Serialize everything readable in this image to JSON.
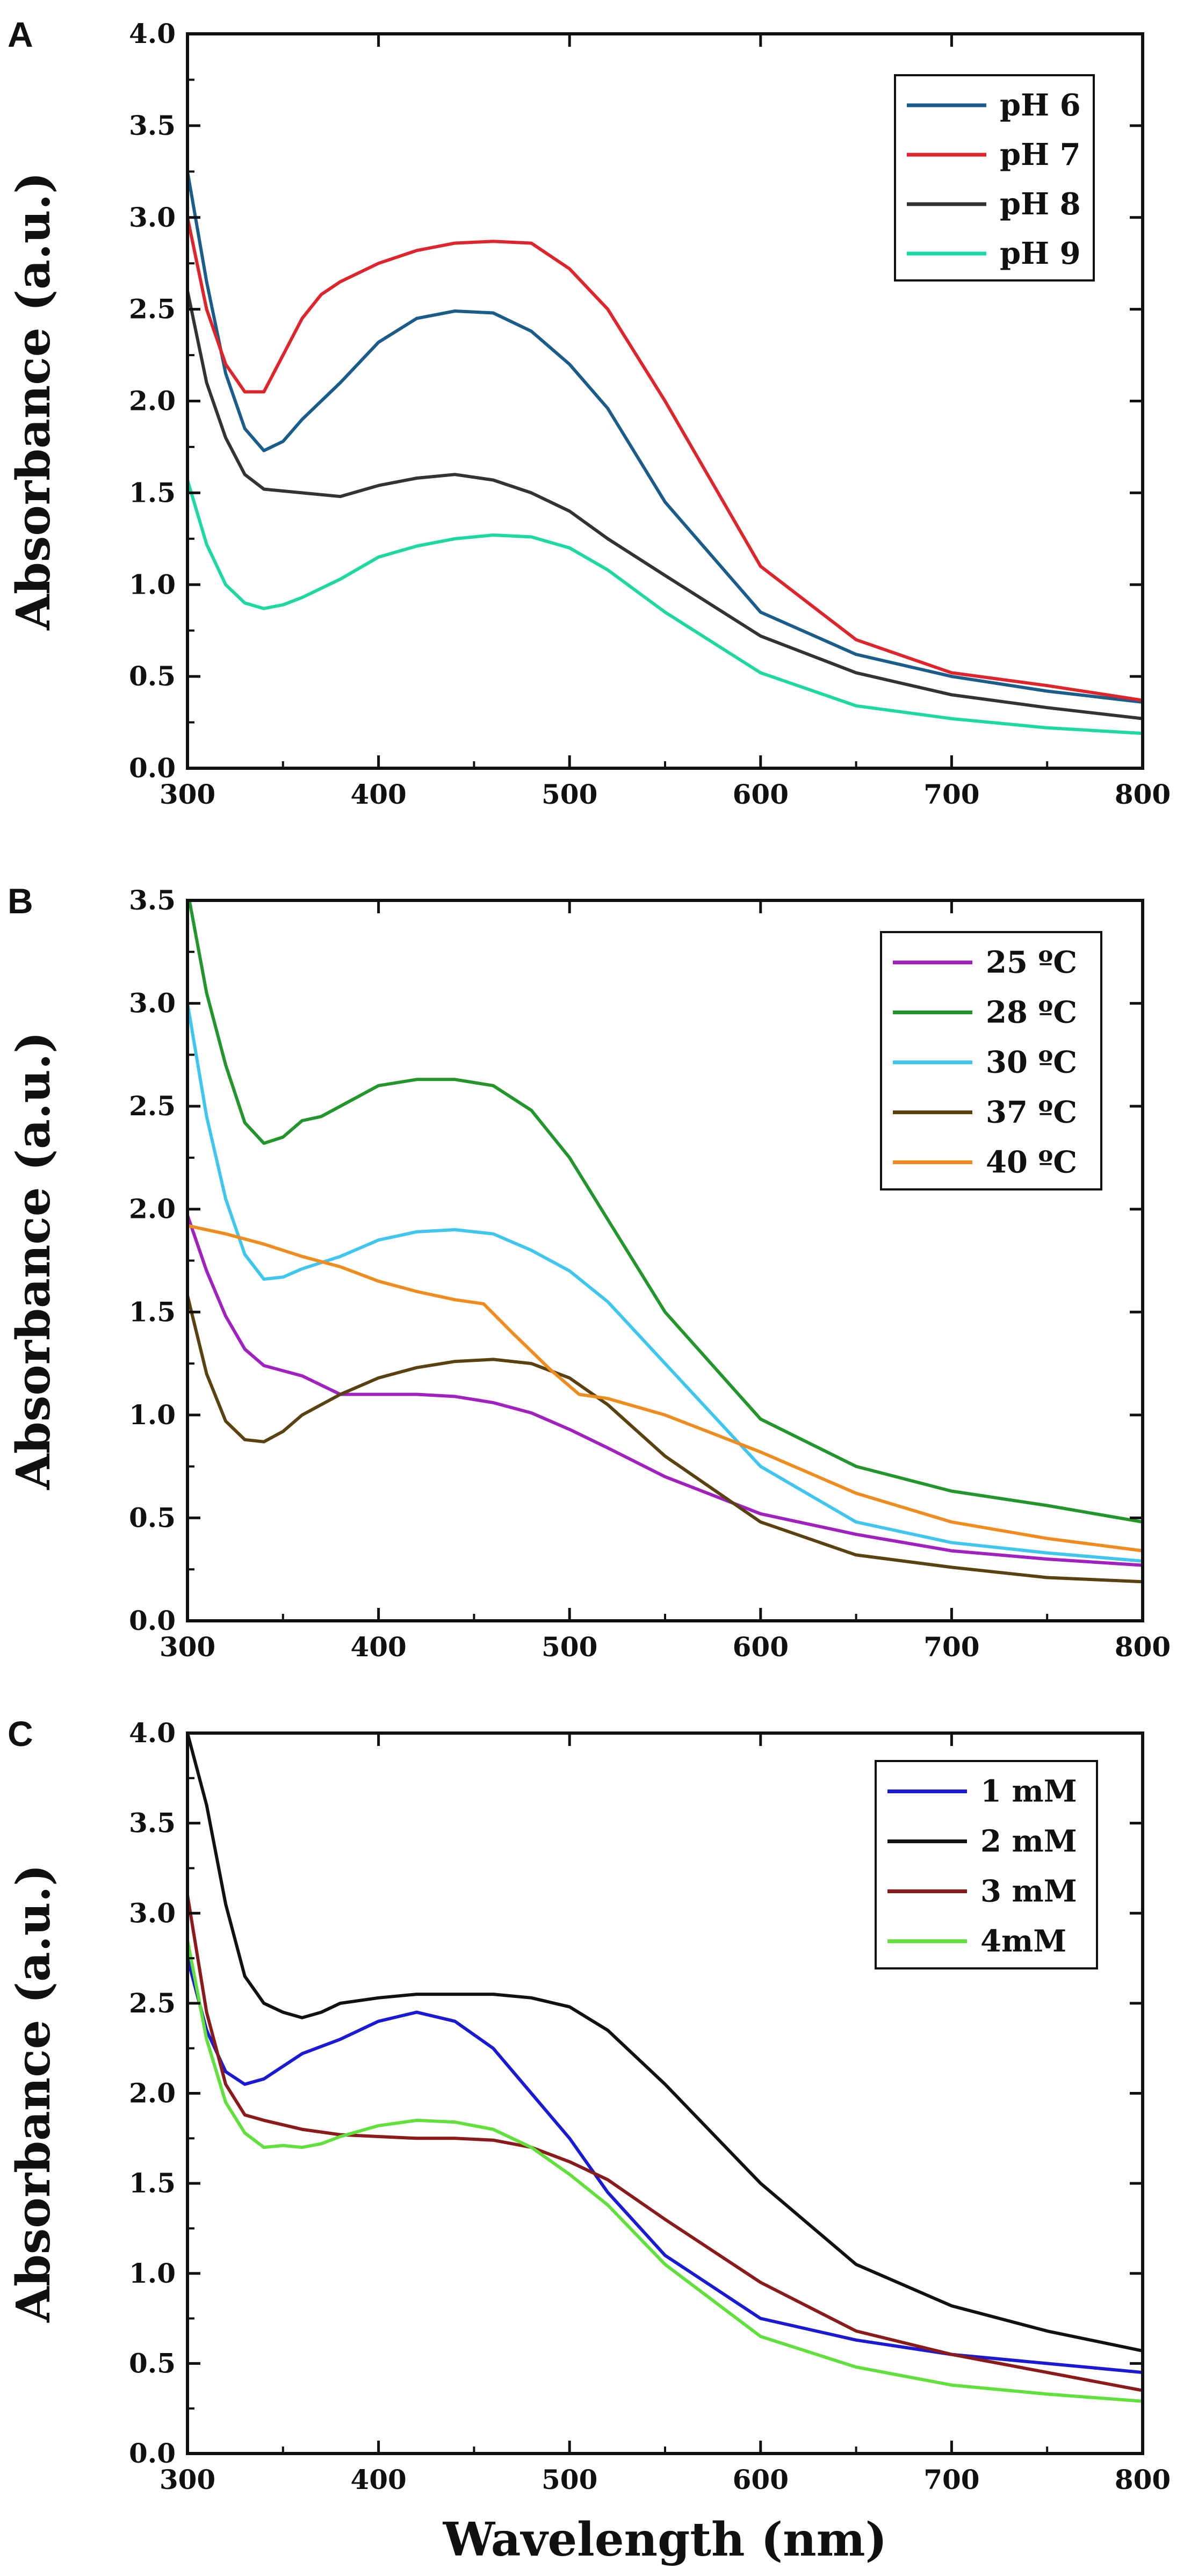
{
  "chart_data": [
    {
      "panel": "A",
      "type": "line",
      "ylabel": "Absorbance (a.u.)",
      "xlabel": "",
      "xlim": [
        300,
        800
      ],
      "ylim": [
        0.0,
        4.0
      ],
      "xticks": [
        300,
        400,
        500,
        600,
        700,
        800
      ],
      "xtick_labels": [
        "300",
        "400",
        "500",
        "600",
        "700",
        "800"
      ],
      "yticks": [
        0.0,
        0.5,
        1.0,
        1.5,
        2.0,
        2.5,
        3.0,
        3.5,
        4.0
      ],
      "ytick_labels": [
        "0.0",
        "0.5",
        "1.0",
        "1.5",
        "2.0",
        "2.5",
        "3.0",
        "3.5",
        "4.0"
      ],
      "legend_position": "top-right",
      "series": [
        {
          "name": "pH 6",
          "color": "#1a5c8a",
          "x": [
            300,
            310,
            320,
            330,
            340,
            350,
            360,
            380,
            400,
            420,
            440,
            460,
            480,
            500,
            520,
            550,
            600,
            650,
            700,
            750,
            800
          ],
          "y": [
            3.25,
            2.65,
            2.15,
            1.85,
            1.73,
            1.78,
            1.9,
            2.1,
            2.32,
            2.45,
            2.49,
            2.48,
            2.38,
            2.2,
            1.96,
            1.45,
            0.85,
            0.62,
            0.5,
            0.42,
            0.36
          ]
        },
        {
          "name": "pH 7",
          "color": "#e0242b",
          "x": [
            300,
            310,
            320,
            330,
            340,
            350,
            360,
            370,
            380,
            400,
            420,
            440,
            460,
            480,
            500,
            520,
            550,
            600,
            650,
            700,
            750,
            800
          ],
          "y": [
            3.0,
            2.5,
            2.2,
            2.05,
            2.05,
            2.25,
            2.45,
            2.58,
            2.65,
            2.75,
            2.82,
            2.86,
            2.87,
            2.86,
            2.72,
            2.5,
            2.0,
            1.1,
            0.7,
            0.52,
            0.45,
            0.37
          ]
        },
        {
          "name": "pH 8",
          "color": "#333333",
          "x": [
            300,
            310,
            320,
            330,
            340,
            360,
            380,
            400,
            420,
            440,
            460,
            480,
            500,
            520,
            550,
            600,
            650,
            700,
            750,
            800
          ],
          "y": [
            2.6,
            2.1,
            1.8,
            1.6,
            1.52,
            1.5,
            1.48,
            1.54,
            1.58,
            1.6,
            1.57,
            1.5,
            1.4,
            1.25,
            1.05,
            0.72,
            0.52,
            0.4,
            0.33,
            0.27
          ]
        },
        {
          "name": "pH 9",
          "color": "#1dd8a0",
          "x": [
            300,
            310,
            320,
            330,
            340,
            350,
            360,
            380,
            400,
            420,
            440,
            460,
            480,
            500,
            520,
            550,
            600,
            650,
            700,
            750,
            800
          ],
          "y": [
            1.57,
            1.22,
            1.0,
            0.9,
            0.87,
            0.89,
            0.93,
            1.03,
            1.15,
            1.21,
            1.25,
            1.27,
            1.26,
            1.2,
            1.08,
            0.85,
            0.52,
            0.34,
            0.27,
            0.22,
            0.19
          ]
        }
      ]
    },
    {
      "panel": "B",
      "type": "line",
      "ylabel": "Absorbance (a.u.)",
      "xlabel": "",
      "xlim": [
        300,
        800
      ],
      "ylim": [
        0.0,
        3.5
      ],
      "xticks": [
        300,
        400,
        500,
        600,
        700,
        800
      ],
      "xtick_labels": [
        "300",
        "400",
        "500",
        "600",
        "700",
        "800"
      ],
      "yticks": [
        0.0,
        0.5,
        1.0,
        1.5,
        2.0,
        2.5,
        3.0,
        3.5
      ],
      "ytick_labels": [
        "0.0",
        "0.5",
        "1.0",
        "1.5",
        "2.0",
        "2.5",
        "3.0",
        "3.5"
      ],
      "legend_position": "top-right",
      "series": [
        {
          "name": "25 ºC",
          "color": "#a020c0",
          "x": [
            300,
            310,
            320,
            330,
            340,
            360,
            380,
            400,
            420,
            440,
            460,
            480,
            500,
            520,
            550,
            600,
            650,
            700,
            750,
            800
          ],
          "y": [
            1.97,
            1.7,
            1.48,
            1.32,
            1.24,
            1.19,
            1.1,
            1.1,
            1.1,
            1.09,
            1.06,
            1.01,
            0.93,
            0.84,
            0.7,
            0.52,
            0.42,
            0.34,
            0.3,
            0.27
          ]
        },
        {
          "name": "28 ºC",
          "color": "#22962a",
          "x": [
            300,
            310,
            320,
            330,
            340,
            350,
            360,
            370,
            380,
            400,
            420,
            440,
            460,
            480,
            500,
            520,
            550,
            600,
            650,
            700,
            750,
            800
          ],
          "y": [
            3.55,
            3.05,
            2.7,
            2.42,
            2.32,
            2.35,
            2.43,
            2.45,
            2.5,
            2.6,
            2.63,
            2.63,
            2.6,
            2.48,
            2.25,
            1.95,
            1.5,
            0.98,
            0.75,
            0.63,
            0.56,
            0.48
          ]
        },
        {
          "name": "30 ºC",
          "color": "#3fc6ee",
          "x": [
            300,
            310,
            320,
            330,
            340,
            350,
            360,
            380,
            400,
            420,
            440,
            460,
            480,
            500,
            520,
            550,
            600,
            650,
            700,
            750,
            800
          ],
          "y": [
            3.0,
            2.45,
            2.05,
            1.78,
            1.66,
            1.67,
            1.71,
            1.77,
            1.85,
            1.89,
            1.9,
            1.88,
            1.8,
            1.7,
            1.55,
            1.25,
            0.75,
            0.48,
            0.38,
            0.33,
            0.29
          ]
        },
        {
          "name": "37 ºC",
          "color": "#5a4210",
          "x": [
            300,
            310,
            320,
            330,
            340,
            350,
            360,
            380,
            400,
            420,
            440,
            460,
            480,
            500,
            520,
            550,
            600,
            650,
            700,
            750,
            800
          ],
          "y": [
            1.58,
            1.2,
            0.97,
            0.88,
            0.87,
            0.92,
            1.0,
            1.1,
            1.18,
            1.23,
            1.26,
            1.27,
            1.25,
            1.18,
            1.05,
            0.8,
            0.48,
            0.32,
            0.26,
            0.21,
            0.19
          ]
        },
        {
          "name": "40 ºC",
          "color": "#f08b1e",
          "x": [
            300,
            320,
            340,
            360,
            380,
            400,
            420,
            440,
            455,
            470,
            490,
            505,
            520,
            550,
            600,
            650,
            700,
            750,
            800
          ],
          "y": [
            1.92,
            1.88,
            1.83,
            1.77,
            1.72,
            1.65,
            1.6,
            1.56,
            1.54,
            1.4,
            1.22,
            1.1,
            1.08,
            1.0,
            0.82,
            0.62,
            0.48,
            0.4,
            0.34
          ]
        }
      ]
    },
    {
      "panel": "C",
      "type": "line",
      "ylabel": "Absorbance (a.u.)",
      "xlabel": "Wavelength (nm)",
      "xlim": [
        300,
        800
      ],
      "ylim": [
        0.0,
        4.0
      ],
      "xticks": [
        300,
        400,
        500,
        600,
        700,
        800
      ],
      "xtick_labels": [
        "300",
        "400",
        "500",
        "600",
        "700",
        "800"
      ],
      "yticks": [
        0.0,
        0.5,
        1.0,
        1.5,
        2.0,
        2.5,
        3.0,
        3.5,
        4.0
      ],
      "ytick_labels": [
        "0.0",
        "0.5",
        "1.0",
        "1.5",
        "2.0",
        "2.5",
        "3.0",
        "3.5",
        "4.0"
      ],
      "legend_position": "top-right",
      "series": [
        {
          "name": "1 mM",
          "color": "#1a1ad6",
          "x": [
            300,
            310,
            320,
            330,
            340,
            350,
            360,
            380,
            400,
            420,
            440,
            460,
            480,
            500,
            520,
            550,
            600,
            650,
            700,
            750,
            800
          ],
          "y": [
            2.75,
            2.35,
            2.12,
            2.05,
            2.08,
            2.15,
            2.22,
            2.3,
            2.4,
            2.45,
            2.4,
            2.25,
            2.0,
            1.75,
            1.45,
            1.1,
            0.75,
            0.63,
            0.55,
            0.5,
            0.45
          ]
        },
        {
          "name": "2 mM",
          "color": "#111111",
          "x": [
            300,
            310,
            320,
            330,
            340,
            350,
            360,
            370,
            380,
            400,
            420,
            440,
            460,
            480,
            500,
            520,
            550,
            600,
            650,
            700,
            750,
            800
          ],
          "y": [
            4.0,
            3.6,
            3.05,
            2.65,
            2.5,
            2.45,
            2.42,
            2.45,
            2.5,
            2.53,
            2.55,
            2.55,
            2.55,
            2.53,
            2.48,
            2.35,
            2.05,
            1.5,
            1.05,
            0.82,
            0.68,
            0.57
          ]
        },
        {
          "name": "3 mM",
          "color": "#8b1a1a",
          "x": [
            300,
            310,
            320,
            330,
            340,
            360,
            380,
            400,
            420,
            440,
            460,
            480,
            500,
            520,
            550,
            600,
            650,
            700,
            750,
            800
          ],
          "y": [
            3.1,
            2.45,
            2.05,
            1.88,
            1.85,
            1.8,
            1.77,
            1.76,
            1.75,
            1.75,
            1.74,
            1.7,
            1.62,
            1.52,
            1.3,
            0.95,
            0.68,
            0.55,
            0.45,
            0.35
          ]
        },
        {
          "name": "4mM",
          "color": "#5fe03a",
          "x": [
            300,
            310,
            320,
            330,
            340,
            350,
            360,
            370,
            380,
            400,
            420,
            440,
            460,
            480,
            500,
            520,
            550,
            600,
            650,
            700,
            750,
            800
          ],
          "y": [
            2.85,
            2.3,
            1.95,
            1.78,
            1.7,
            1.71,
            1.7,
            1.72,
            1.76,
            1.82,
            1.85,
            1.84,
            1.8,
            1.7,
            1.55,
            1.38,
            1.05,
            0.65,
            0.48,
            0.38,
            0.33,
            0.29
          ]
        }
      ]
    }
  ]
}
